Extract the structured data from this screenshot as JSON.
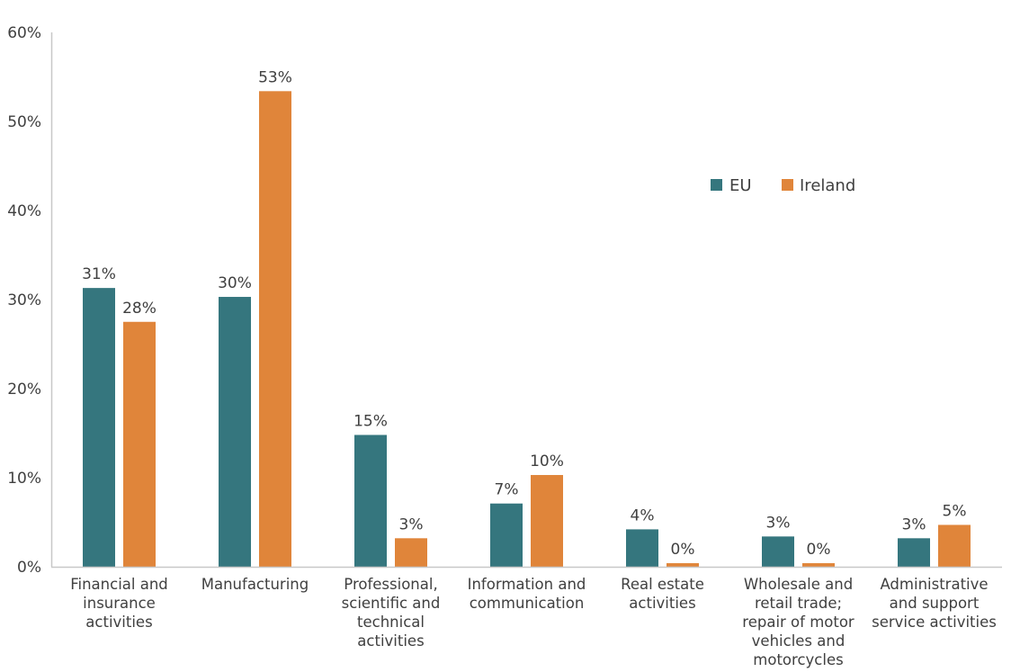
{
  "chart_data": {
    "type": "bar",
    "title": "",
    "xlabel": "",
    "ylabel": "",
    "ylim": [
      0,
      60
    ],
    "yticks": [
      0,
      10,
      20,
      30,
      40,
      50,
      60
    ],
    "ytick_labels": [
      "0%",
      "10%",
      "20%",
      "30%",
      "40%",
      "50%",
      "60%"
    ],
    "grid": false,
    "legend_position": "top-right",
    "categories": [
      "Financial and\ninsurance\nactivities",
      "Manufacturing",
      "Professional,\nscientific and\ntechnical\nactivities",
      "Information and\ncommunication",
      "Real estate\nactivities",
      "Wholesale and\nretail trade;\nrepair of motor\nvehicles and\nmotorcycles",
      "Administrative\nand support\nservice activities"
    ],
    "series": [
      {
        "name": "EU",
        "color": "#35767E",
        "values": [
          31.3,
          30.3,
          14.8,
          7.1,
          4.2,
          3.4,
          3.2
        ],
        "labels": [
          "31%",
          "30%",
          "15%",
          "7%",
          "4%",
          "3%",
          "3%"
        ]
      },
      {
        "name": "Ireland",
        "color": "#E0853A",
        "values": [
          27.5,
          53.4,
          3.2,
          10.3,
          0.4,
          0.4,
          4.7
        ],
        "labels": [
          "28%",
          "53%",
          "3%",
          "10%",
          "0%",
          "0%",
          "5%"
        ]
      }
    ]
  }
}
